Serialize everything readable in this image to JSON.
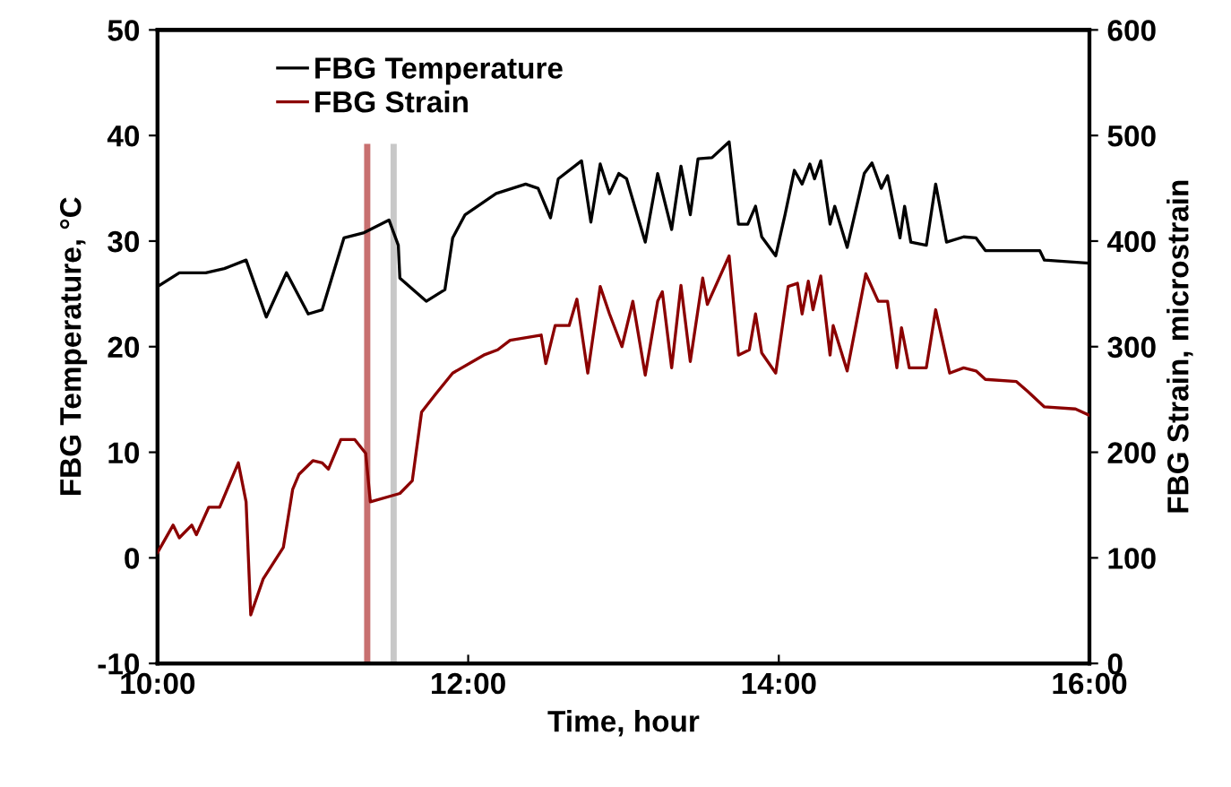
{
  "chart_data": {
    "type": "line",
    "xlabel": "Time, hour",
    "ylabel": "FBG Temperature, °C",
    "y2label": "FBG Strain, microstrain",
    "xlim": [
      10,
      16
    ],
    "xticks": [
      {
        "value": 10,
        "label": "10:00"
      },
      {
        "value": 12,
        "label": "12:00"
      },
      {
        "value": 14,
        "label": "14:00"
      },
      {
        "value": 16,
        "label": "16:00"
      }
    ],
    "ylim": [
      -10,
      50
    ],
    "yticks": [
      -10,
      0,
      10,
      20,
      30,
      40,
      50
    ],
    "y2lim": [
      0,
      600
    ],
    "y2ticks": [
      0,
      100,
      200,
      300,
      400,
      500,
      600
    ],
    "legend": "top left",
    "grid": false,
    "marker": "none",
    "line_style": "solid",
    "bands": [
      {
        "axis": "x",
        "from": 11.33,
        "to": 11.37,
        "color": "#c87070"
      },
      {
        "axis": "x",
        "from": 11.5,
        "to": 11.54,
        "color": "#c8c8c8"
      }
    ],
    "series": [
      {
        "name": "FBG Temperature",
        "color": "#000000",
        "x": [
          10.0,
          10.14,
          10.31,
          10.43,
          10.57,
          10.7,
          10.83,
          10.97,
          11.06,
          11.2,
          11.33,
          11.49,
          11.55,
          11.56,
          11.73,
          11.85,
          11.9,
          11.98,
          12.18,
          12.37,
          12.45,
          12.53,
          12.58,
          12.73,
          12.79,
          12.85,
          12.91,
          12.97,
          13.02,
          13.14,
          13.22,
          13.31,
          13.37,
          13.43,
          13.48,
          13.57,
          13.68,
          13.74,
          13.8,
          13.85,
          13.89,
          13.98,
          14.04,
          14.1,
          14.15,
          14.2,
          14.23,
          14.27,
          14.33,
          14.36,
          14.44,
          14.55,
          14.6,
          14.66,
          14.7,
          14.78,
          14.81,
          14.85,
          14.95,
          15.01,
          15.08,
          15.19,
          15.27,
          15.33,
          15.68,
          15.71,
          16.0
        ],
        "values": [
          25.7,
          27,
          27,
          27.4,
          28.2,
          22.8,
          27,
          23.1,
          23.5,
          30.3,
          30.8,
          32,
          29.6,
          26.5,
          24.3,
          25.4,
          30.3,
          32.5,
          34.5,
          35.4,
          35,
          32.2,
          35.9,
          37.6,
          31.8,
          37.3,
          34.5,
          36.4,
          35.9,
          29.9,
          36.4,
          31.1,
          37.1,
          32.5,
          37.8,
          37.9,
          39.4,
          31.6,
          31.6,
          33.3,
          30.4,
          28.6,
          32.5,
          36.7,
          35.4,
          37.3,
          35.9,
          37.6,
          31.6,
          33.3,
          29.4,
          36.4,
          37.4,
          35,
          36.2,
          30.3,
          33.3,
          29.9,
          29.6,
          35.4,
          29.9,
          30.4,
          30.3,
          29.1,
          29.1,
          28.2,
          27.9
        ]
      },
      {
        "name": "FBG Strain",
        "color": "#8b0000",
        "axis": "y2",
        "x": [
          10.0,
          10.1,
          10.14,
          10.22,
          10.25,
          10.33,
          10.4,
          10.52,
          10.57,
          10.6,
          10.68,
          10.81,
          10.87,
          10.91,
          11.0,
          11.06,
          11.1,
          11.18,
          11.27,
          11.34,
          11.37,
          11.56,
          11.64,
          11.7,
          11.79,
          11.9,
          12.1,
          12.19,
          12.27,
          12.47,
          12.5,
          12.56,
          12.65,
          12.7,
          12.77,
          12.85,
          12.91,
          12.99,
          13.06,
          13.14,
          13.22,
          13.25,
          13.31,
          13.37,
          13.43,
          13.51,
          13.54,
          13.68,
          13.74,
          13.81,
          13.85,
          13.89,
          13.98,
          14.06,
          14.12,
          14.15,
          14.19,
          14.22,
          14.27,
          14.33,
          14.35,
          14.44,
          14.56,
          14.64,
          14.7,
          14.76,
          14.79,
          14.84,
          14.95,
          15.01,
          15.1,
          15.19,
          15.27,
          15.33,
          15.53,
          15.6,
          15.71,
          15.91,
          16.0
        ],
        "values": [
          105,
          131,
          119,
          131,
          122,
          148,
          148,
          190,
          153,
          46,
          80,
          110,
          165,
          179,
          192,
          190,
          184,
          212,
          212,
          199,
          153,
          161,
          173,
          238,
          255,
          275,
          292,
          297,
          306,
          311,
          284,
          320,
          320,
          345,
          275,
          357,
          331,
          300,
          343,
          273,
          343,
          352,
          280,
          358,
          286,
          365,
          340,
          386,
          292,
          297,
          331,
          294,
          275,
          357,
          360,
          331,
          362,
          335,
          367,
          292,
          320,
          277,
          369,
          343,
          343,
          280,
          318,
          280,
          280,
          335,
          275,
          280,
          277,
          269,
          267,
          258,
          243,
          241,
          235
        ]
      }
    ]
  }
}
